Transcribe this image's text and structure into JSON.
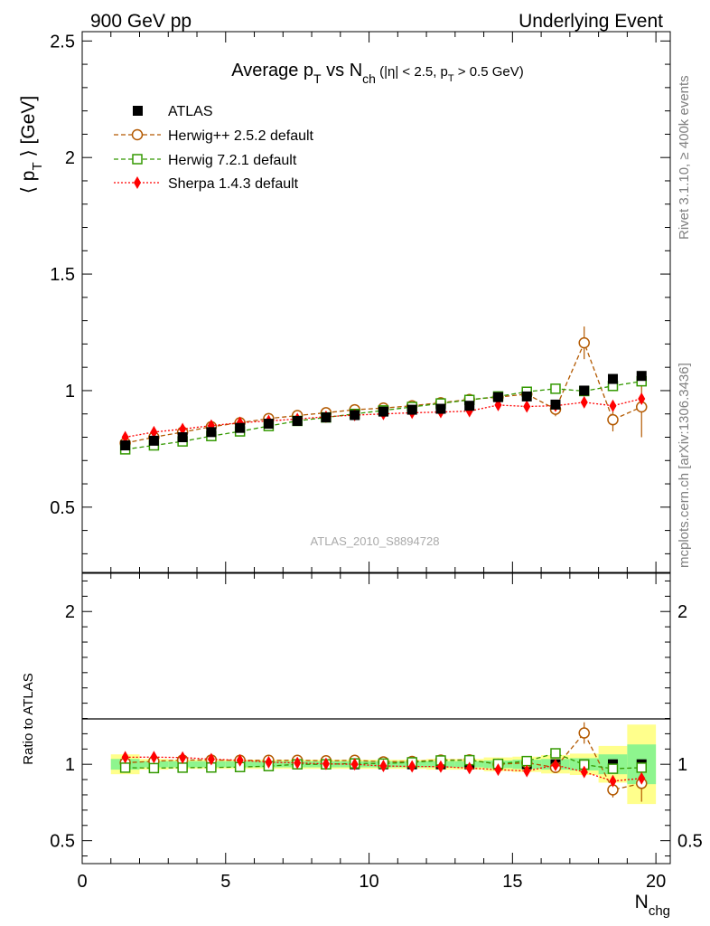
{
  "header": {
    "left": "900 GeV pp",
    "right": "Underlying Event"
  },
  "side_labels": {
    "top": "Rivet 3.1.10, ≥ 400k events",
    "bottom": "mcplots.cern.ch [arXiv:1306.3436]"
  },
  "chart_data": [
    {
      "type": "scatter",
      "title": {
        "main": "Average p",
        "main_sub": "T",
        "vs": " vs N",
        "vs_sub": "ch",
        "cuts_a": " (|η| < 2.5, p",
        "cuts_sub": "T",
        "cuts_b": " > 0.5 GeV)"
      },
      "ylabel": {
        "pre": "⟨ p",
        "sub": "T",
        "post": " ⟩ [GeV]"
      },
      "xlim": [
        0,
        20.5
      ],
      "ylim": [
        0.22,
        2.54
      ],
      "yticks": [
        0.5,
        1,
        1.5,
        2,
        2.5
      ],
      "ytick_labels": [
        "0.5",
        "1",
        "1.5",
        "2",
        "2.5"
      ],
      "watermark": "ATLAS_2010_S8894728",
      "x": [
        1.5,
        2.5,
        3.5,
        4.5,
        5.5,
        6.5,
        7.5,
        8.5,
        9.5,
        10.5,
        11.5,
        12.5,
        13.5,
        14.5,
        15.5,
        16.5,
        17.5,
        18.5,
        19.5
      ],
      "series": [
        {
          "name": "ATLAS",
          "marker": "filled-square",
          "color": "#000000",
          "y": [
            0.765,
            0.785,
            0.8,
            0.822,
            0.84,
            0.858,
            0.87,
            0.885,
            0.895,
            0.91,
            0.918,
            0.922,
            0.935,
            0.972,
            0.975,
            0.94,
            1.0,
            1.05,
            1.063
          ]
        },
        {
          "name": "Herwig++ 2.5.2 default",
          "marker": "open-circle",
          "color": "#b35900",
          "dash": "5,3",
          "y": [
            0.775,
            0.8,
            0.822,
            0.845,
            0.862,
            0.88,
            0.893,
            0.905,
            0.918,
            0.925,
            0.935,
            0.948,
            0.962,
            0.972,
            0.985,
            0.92,
            1.205,
            0.875,
            0.93
          ],
          "err": [
            0,
            0,
            0,
            0,
            0,
            0,
            0,
            0,
            0,
            0,
            0,
            0,
            0,
            0,
            0,
            0.03,
            0.07,
            0.05,
            0.13
          ]
        },
        {
          "name": "Herwig 7.2.1 default",
          "marker": "open-square",
          "color": "#339900",
          "dash": "5,3",
          "y": [
            0.748,
            0.765,
            0.782,
            0.805,
            0.825,
            0.848,
            0.87,
            0.885,
            0.9,
            0.915,
            0.93,
            0.945,
            0.96,
            0.975,
            0.995,
            1.008,
            0.998,
            1.02,
            1.04
          ]
        },
        {
          "name": "Sherpa 1.4.3 default",
          "marker": "filled-diamond",
          "color": "#ff0000",
          "dash": "2,2",
          "y": [
            0.8,
            0.822,
            0.835,
            0.85,
            0.862,
            0.87,
            0.878,
            0.888,
            0.895,
            0.9,
            0.905,
            0.908,
            0.912,
            0.938,
            0.932,
            0.935,
            0.95,
            0.935,
            0.965
          ]
        }
      ]
    },
    {
      "type": "scatter",
      "ylabel": "Ratio to ATLAS",
      "xlabel": {
        "base": "N",
        "sub": "chg"
      },
      "xlim": [
        0,
        20.5
      ],
      "ylim": [
        0.35,
        2.25
      ],
      "xticks": [
        0,
        5,
        10,
        15,
        20
      ],
      "xtick_labels": [
        "0",
        "5",
        "10",
        "15",
        "20"
      ],
      "yticks": [
        0.5,
        1,
        2
      ],
      "ytick_labels": [
        "0.5",
        "1",
        "2"
      ],
      "band_edges": [
        1,
        2,
        3,
        4,
        5,
        6,
        7,
        8,
        9,
        10,
        11,
        12,
        13,
        14,
        15,
        16,
        17,
        18,
        19,
        20
      ],
      "band_outer": [
        0.065,
        0.035,
        0.03,
        0.03,
        0.03,
        0.03,
        0.03,
        0.03,
        0.03,
        0.03,
        0.03,
        0.035,
        0.035,
        0.045,
        0.05,
        0.06,
        0.07,
        0.12,
        0.26
      ],
      "band_inner": [
        0.035,
        0.02,
        0.02,
        0.02,
        0.02,
        0.02,
        0.02,
        0.02,
        0.02,
        0.02,
        0.02,
        0.02,
        0.02,
        0.025,
        0.03,
        0.035,
        0.04,
        0.065,
        0.13
      ],
      "band_colors": {
        "outer": "#ffff8c",
        "inner": "#8ef58e"
      },
      "series": [
        {
          "name": "Herwig++ 2.5.2 default",
          "y": [
            1.01,
            1.02,
            1.028,
            1.028,
            1.026,
            1.026,
            1.026,
            1.023,
            1.026,
            1.016,
            1.019,
            1.028,
            1.029,
            1.0,
            1.01,
            0.979,
            1.205,
            0.833,
            0.875
          ],
          "err": [
            0,
            0,
            0,
            0,
            0,
            0,
            0,
            0,
            0,
            0,
            0,
            0,
            0,
            0,
            0,
            0.03,
            0.07,
            0.05,
            0.12
          ]
        },
        {
          "name": "Herwig 7.2.1 default",
          "y": [
            0.978,
            0.975,
            0.978,
            0.979,
            0.982,
            0.988,
            1.0,
            1.0,
            1.006,
            1.005,
            1.013,
            1.025,
            1.027,
            1.003,
            1.021,
            1.072,
            0.998,
            0.971,
            0.978
          ]
        },
        {
          "name": "Sherpa 1.4.3 default",
          "y": [
            1.046,
            1.047,
            1.044,
            1.034,
            1.026,
            1.014,
            1.009,
            1.003,
            1.0,
            0.989,
            0.986,
            0.985,
            0.975,
            0.965,
            0.956,
            0.995,
            0.95,
            0.89,
            0.908
          ]
        }
      ]
    }
  ]
}
